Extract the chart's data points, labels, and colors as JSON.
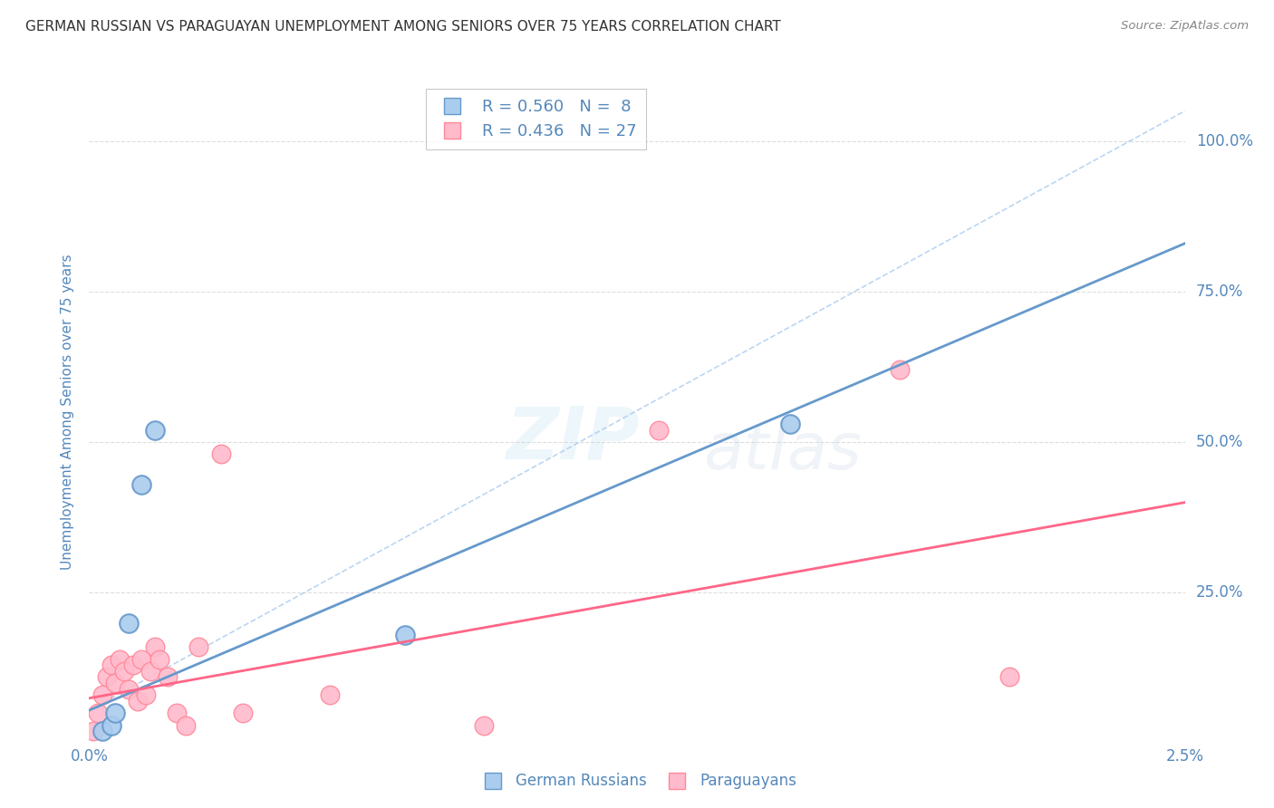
{
  "title": "GERMAN RUSSIAN VS PARAGUAYAN UNEMPLOYMENT AMONG SENIORS OVER 75 YEARS CORRELATION CHART",
  "source": "Source: ZipAtlas.com",
  "ylabel": "Unemployment Among Seniors over 75 years",
  "xmin": 0.0,
  "xmax": 0.025,
  "ymin": 0.0,
  "ymax": 1.1,
  "yticks": [
    0.0,
    0.25,
    0.5,
    0.75,
    1.0
  ],
  "ytick_labels": [
    "",
    "25.0%",
    "50.0%",
    "75.0%",
    "100.0%"
  ],
  "gr_R": 0.56,
  "gr_N": 8,
  "pa_R": 0.436,
  "pa_N": 27,
  "german_russian_x": [
    0.0003,
    0.0005,
    0.0006,
    0.0009,
    0.0012,
    0.0015,
    0.0072,
    0.016
  ],
  "german_russian_y": [
    0.02,
    0.03,
    0.05,
    0.2,
    0.43,
    0.52,
    0.18,
    0.53
  ],
  "paraguayan_x": [
    0.0001,
    0.0002,
    0.0003,
    0.0004,
    0.0005,
    0.0006,
    0.0007,
    0.0008,
    0.0009,
    0.001,
    0.0011,
    0.0012,
    0.0013,
    0.0014,
    0.0015,
    0.0016,
    0.0018,
    0.002,
    0.0022,
    0.0025,
    0.003,
    0.0035,
    0.0055,
    0.009,
    0.013,
    0.0185,
    0.021
  ],
  "paraguayan_y": [
    0.02,
    0.05,
    0.08,
    0.11,
    0.13,
    0.1,
    0.14,
    0.12,
    0.09,
    0.13,
    0.07,
    0.14,
    0.08,
    0.12,
    0.16,
    0.14,
    0.11,
    0.05,
    0.03,
    0.16,
    0.48,
    0.05,
    0.08,
    0.03,
    0.52,
    0.62,
    0.11
  ],
  "gr_line_x0": 0.0,
  "gr_line_y0": 0.055,
  "gr_line_x1": 0.025,
  "gr_line_y1": 0.83,
  "pa_line_x0": 0.0,
  "pa_line_y0": 0.075,
  "pa_line_x1": 0.025,
  "pa_line_y1": 0.4,
  "dash_line_x0": 0.0,
  "dash_line_y0": 0.055,
  "dash_line_x1": 0.025,
  "dash_line_y1": 1.05,
  "gr_line_color": "#6699CC",
  "pa_line_color": "#FF6688",
  "gr_dot_facecolor": "#AACCEE",
  "gr_dot_edgecolor": "#6699CC",
  "pa_dot_facecolor": "#FFBBCC",
  "pa_dot_edgecolor": "#FF8899",
  "title_color": "#333333",
  "axis_label_color": "#5588BB",
  "legend_text_color": "#5588BB",
  "background_color": "#FFFFFF",
  "watermark_color": "#CCDDEEFF",
  "dashed_line_color": "#AACCEE",
  "grid_color": "#DDDDDD"
}
